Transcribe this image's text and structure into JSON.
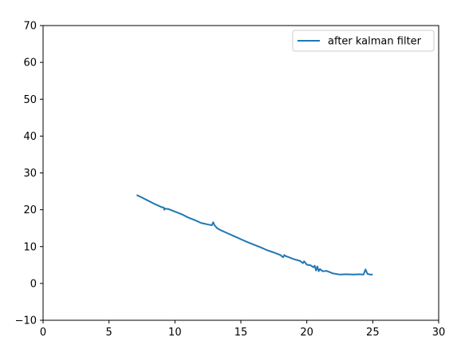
{
  "chart_data": {
    "type": "line",
    "title": "",
    "xlabel": "",
    "ylabel": "",
    "xlim": [
      0,
      30
    ],
    "ylim": [
      -10,
      70
    ],
    "xticks": [
      0,
      5,
      10,
      15,
      20,
      25,
      30
    ],
    "yticks": [
      -10,
      0,
      10,
      20,
      30,
      40,
      50,
      60,
      70
    ],
    "grid": false,
    "legend_position": "top-right",
    "series": [
      {
        "name": "after kalman filter",
        "color": "#1f77b4",
        "x": [
          7.1,
          7.5,
          8.0,
          8.5,
          9.0,
          9.15,
          9.2,
          9.25,
          9.5,
          10.0,
          10.5,
          11.0,
          11.5,
          12.0,
          12.5,
          12.8,
          12.9,
          13.0,
          13.2,
          13.5,
          14.0,
          14.5,
          15.0,
          15.5,
          16.0,
          16.5,
          17.0,
          17.5,
          18.0,
          18.2,
          18.3,
          18.4,
          18.5,
          19.0,
          19.5,
          19.7,
          19.8,
          20.0,
          20.3,
          20.5,
          20.6,
          20.7,
          20.8,
          20.9,
          21.0,
          21.2,
          21.5,
          22.0,
          22.5,
          23.0,
          23.5,
          24.0,
          24.3,
          24.45,
          24.6,
          24.8,
          25.0
        ],
        "y": [
          24.0,
          23.3,
          22.4,
          21.5,
          20.7,
          20.6,
          20.0,
          20.3,
          20.2,
          19.5,
          18.8,
          17.9,
          17.2,
          16.4,
          16.0,
          15.8,
          16.6,
          15.8,
          15.0,
          14.4,
          13.6,
          12.8,
          12.0,
          11.2,
          10.5,
          9.8,
          9.0,
          8.4,
          7.7,
          7.1,
          7.7,
          7.4,
          7.3,
          6.6,
          6.1,
          5.5,
          6.0,
          5.1,
          4.9,
          4.4,
          4.8,
          3.5,
          4.6,
          3.3,
          3.9,
          3.3,
          3.4,
          2.7,
          2.4,
          2.5,
          2.4,
          2.5,
          2.4,
          3.8,
          2.6,
          2.4,
          2.4
        ]
      }
    ]
  }
}
